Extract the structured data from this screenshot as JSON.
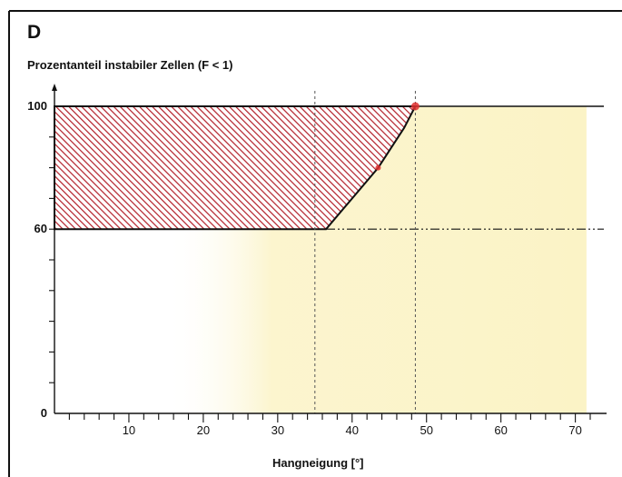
{
  "panel_label": "D",
  "chart_data": {
    "type": "area",
    "title": "Prozentanteil instabiler Zellen (F < 1)",
    "xlabel": "Hangneigung [°]",
    "ylabel": "",
    "xlim": [
      0,
      72
    ],
    "ylim": [
      0,
      100
    ],
    "x_ticks": [
      10,
      20,
      30,
      40,
      50,
      60,
      70
    ],
    "x_minor_step": 2,
    "y_ticks": [
      0,
      60,
      100
    ],
    "y_minor_step": 10,
    "threshold_lines": [
      {
        "y": 100,
        "style": "solid"
      },
      {
        "y": 60,
        "style": "dash-dot-dot"
      }
    ],
    "reference_x": [
      35,
      48.5
    ],
    "hatched_region": {
      "polygon": [
        [
          0,
          60
        ],
        [
          36.5,
          60
        ],
        [
          43.5,
          80
        ],
        [
          47,
          93
        ],
        [
          48.5,
          100
        ],
        [
          0,
          100
        ]
      ],
      "hatch_color": "#b3202a"
    },
    "curve_points": [
      {
        "x": 43.5,
        "y": 80
      },
      {
        "x": 48.5,
        "y": 100
      }
    ],
    "shaded_band": {
      "x_start": 15,
      "x_end": 71.5,
      "color": "#fbf3c6"
    },
    "grid": false
  }
}
